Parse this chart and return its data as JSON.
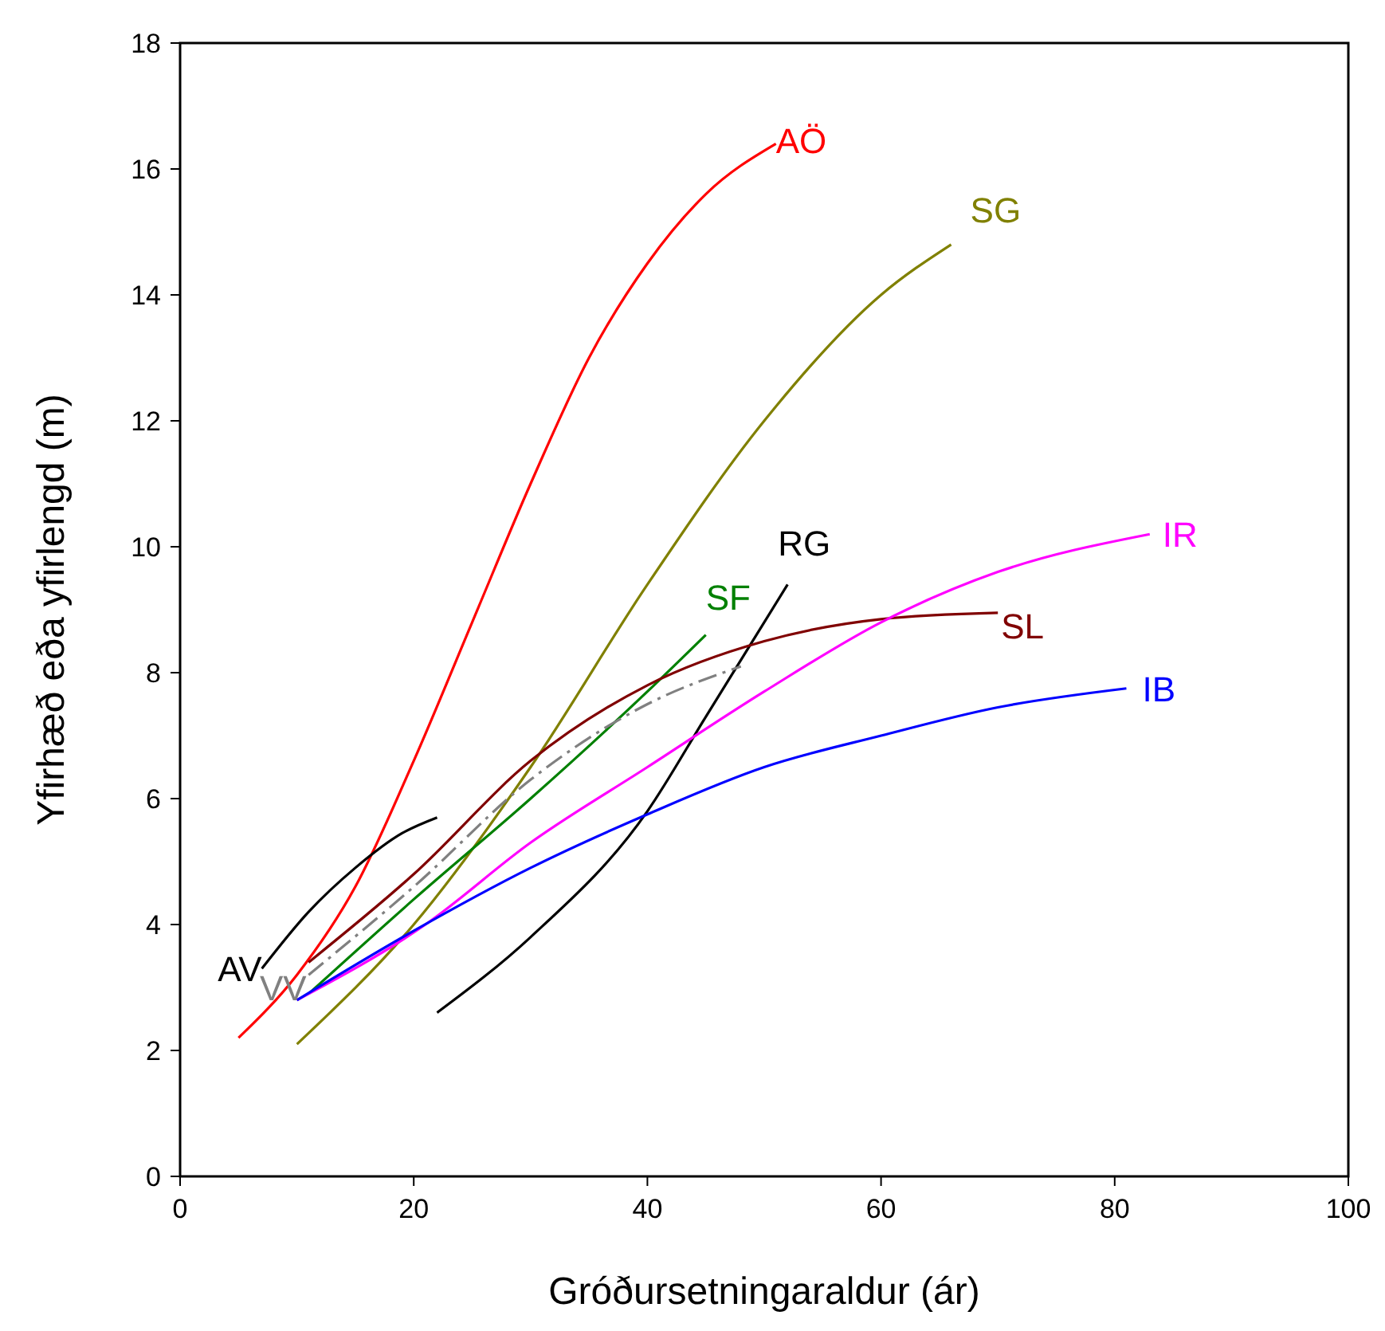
{
  "chart_data": {
    "type": "line",
    "xlabel": "Gróðursetningaraldur (ár)",
    "ylabel": "Yfirhæð eða yfirlengd (m)",
    "xlim": [
      0,
      100
    ],
    "xticks": [
      0,
      20,
      40,
      60,
      80,
      100
    ],
    "ylim": [
      0,
      18
    ],
    "yticks": [
      0,
      2,
      4,
      6,
      8,
      10,
      12,
      14,
      16,
      18
    ],
    "grid": false,
    "marker": "none",
    "series": [
      {
        "name": "AÖ",
        "color": "#ff0000",
        "x": [
          5,
          10,
          15,
          20,
          25,
          30,
          35,
          40,
          45,
          51
        ],
        "values": [
          2.2,
          3.2,
          4.6,
          6.6,
          8.8,
          11.0,
          13.0,
          14.5,
          15.6,
          16.4
        ]
      },
      {
        "name": "SG",
        "color": "#808000",
        "x": [
          10,
          20,
          30,
          40,
          50,
          60,
          66
        ],
        "values": [
          2.1,
          4.0,
          6.5,
          9.4,
          12.0,
          14.0,
          14.8
        ]
      },
      {
        "name": "RG",
        "color": "#000000",
        "x": [
          22,
          30,
          40,
          45,
          52
        ],
        "values": [
          2.6,
          3.8,
          5.8,
          7.3,
          9.4
        ]
      },
      {
        "name": "SF",
        "color": "#008000",
        "x": [
          11,
          20,
          30,
          40,
          45
        ],
        "values": [
          2.9,
          4.4,
          6.0,
          7.7,
          8.6
        ]
      },
      {
        "name": "SL",
        "color": "#800000",
        "x": [
          11,
          20,
          30,
          40,
          50,
          60,
          70
        ],
        "values": [
          3.4,
          4.8,
          6.6,
          7.8,
          8.5,
          8.85,
          8.95
        ]
      },
      {
        "name": "IR",
        "color": "#ff00ff",
        "x": [
          10,
          21,
          30,
          40,
          50,
          60,
          70,
          83
        ],
        "values": [
          2.8,
          4.0,
          5.3,
          6.5,
          7.7,
          8.8,
          9.6,
          10.2
        ]
      },
      {
        "name": "IB",
        "color": "#0000ff",
        "x": [
          10,
          20,
          30,
          40,
          50,
          60,
          70,
          81
        ],
        "values": [
          2.8,
          3.9,
          4.9,
          5.75,
          6.5,
          7.0,
          7.45,
          7.75
        ]
      },
      {
        "name": "AV",
        "color": "#000000",
        "x": [
          7,
          11,
          15,
          19,
          22
        ],
        "values": [
          3.3,
          4.2,
          4.9,
          5.45,
          5.7
        ]
      },
      {
        "name": "VV",
        "color": "#808080",
        "line_style": "dashed",
        "x": [
          11,
          20,
          30,
          40,
          48
        ],
        "values": [
          3.2,
          4.6,
          6.3,
          7.5,
          8.1
        ]
      }
    ]
  }
}
